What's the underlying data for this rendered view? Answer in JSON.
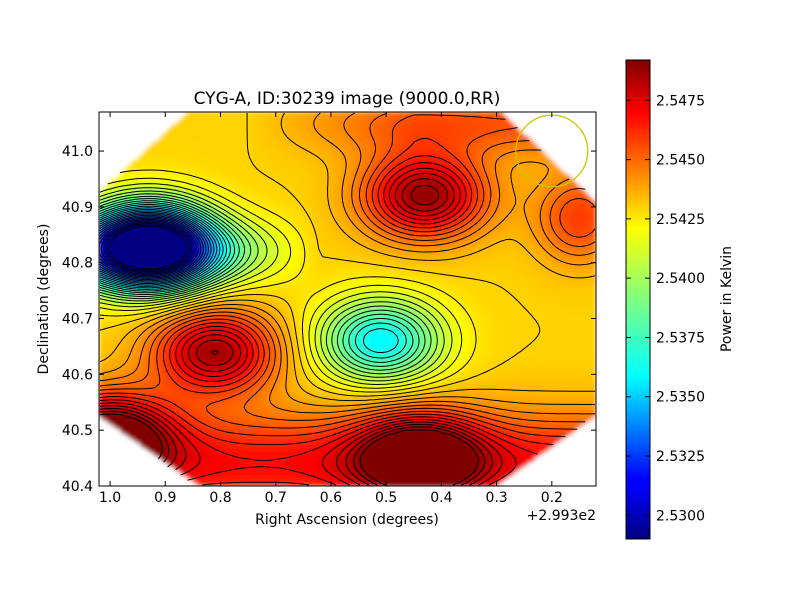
{
  "chart_data": {
    "type": "heatmap",
    "title": "CYG-A, ID:30239 image (9000.0,RR)",
    "xlabel": "Right Ascension (degrees)",
    "ylabel": "Declination (degrees)",
    "x_offset_label": "+2.993e2",
    "x_ticks": [
      "1.0",
      "0.9",
      "0.8",
      "0.7",
      "0.6",
      "0.5",
      "0.4",
      "0.3",
      "0.2"
    ],
    "x_tick_values": [
      1.0,
      0.9,
      0.8,
      0.7,
      0.6,
      0.5,
      0.4,
      0.3,
      0.2
    ],
    "xlim": [
      1.02,
      0.12
    ],
    "y_ticks": [
      "40.4",
      "40.5",
      "40.6",
      "40.7",
      "40.8",
      "40.9",
      "41.0"
    ],
    "y_tick_values": [
      40.4,
      40.5,
      40.6,
      40.7,
      40.8,
      40.9,
      41.0
    ],
    "ylim": [
      40.4,
      41.07
    ],
    "colorbar": {
      "label": "Power in Kelvin",
      "ticks": [
        "2.5300",
        "2.5325",
        "2.5350",
        "2.5375",
        "2.5400",
        "2.5425",
        "2.5450",
        "2.5475"
      ],
      "tick_values": [
        2.53,
        2.5325,
        2.535,
        2.5375,
        2.54,
        2.5425,
        2.545,
        2.5475
      ],
      "range": [
        2.529,
        2.5492
      ],
      "colormap": "jet"
    },
    "features": [
      {
        "kind": "minimum",
        "x": 0.93,
        "y": 40.83,
        "value": 2.5295
      },
      {
        "kind": "minimum",
        "x": 0.51,
        "y": 40.66,
        "value": 2.5365
      },
      {
        "kind": "maximum",
        "x": 0.43,
        "y": 40.92,
        "value": 2.5488
      },
      {
        "kind": "maximum",
        "x": 0.81,
        "y": 40.64,
        "value": 2.5485
      },
      {
        "kind": "maximum",
        "x": 1.0,
        "y": 40.49,
        "value": 2.549
      },
      {
        "kind": "maximum",
        "x": 0.44,
        "y": 40.45,
        "value": 2.549
      }
    ],
    "beam_marker": {
      "x": 0.2,
      "y": 41.0,
      "radius_deg": 0.065,
      "color": "#c8c800"
    },
    "contours": true,
    "grid": false
  }
}
